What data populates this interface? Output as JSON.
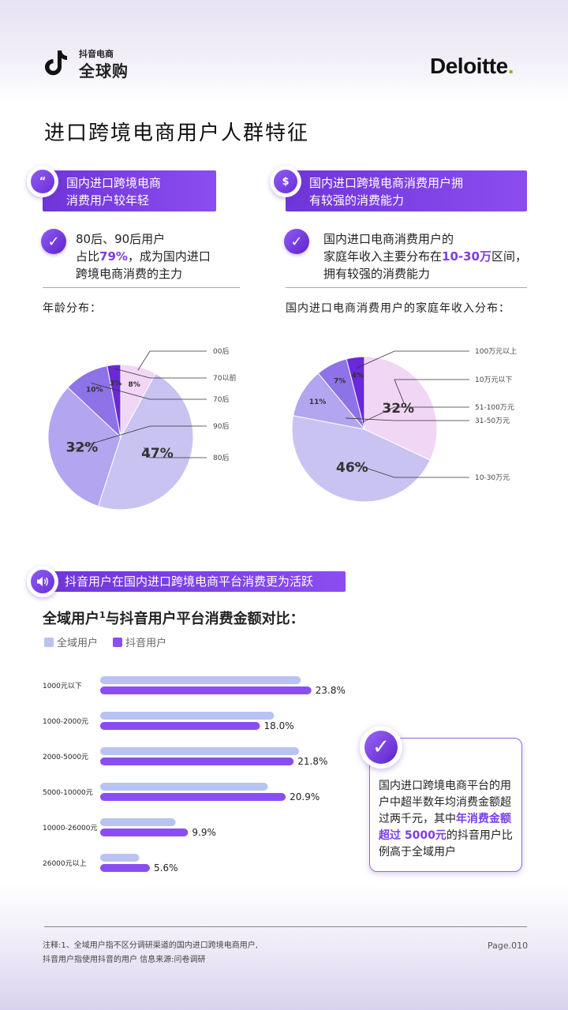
{
  "header": {
    "brand_small": "抖音电商",
    "brand_large": "全球购",
    "partner": "Deloitte",
    "partner_dot": "."
  },
  "page_title": "进口跨境电商用户人群特征",
  "left_section": {
    "banner_line1": "国内进口跨境电商",
    "banner_line2": "消费用户较年轻",
    "icon_glyph": "“",
    "highlight_line1": "80后、90后用户",
    "highlight_line2_pre": "占比",
    "highlight_line2_em": "79%",
    "highlight_line2_post": "，成为国内进口",
    "highlight_line3": "跨境电商消费的主力",
    "chart_title": "年龄分布："
  },
  "right_section": {
    "banner_line1": "国内进口跨境电商消费用户拥",
    "banner_line2": "有较强的消费能力",
    "icon_glyph": "$",
    "highlight_line1": "国内进口电商消费用户的",
    "highlight_line2_pre": "家庭年收入主要分布在",
    "highlight_line2_em": "10-30万",
    "highlight_line2_post": "区间，",
    "highlight_line3": "拥有较强的消费能力",
    "chart_title": "国内进口电商消费用户的家庭年收入分布："
  },
  "bottom_section": {
    "banner": "抖音用户在国内进口跨境电商平台消费更为活跃",
    "chart_title_pre": "全域用户",
    "chart_title_sup": "1",
    "chart_title_post": "与抖音用户平台消费金额对比：",
    "callout_pre": "国内进口跨境电商平台的用户中超半数年均消费金额超过两千元，其中",
    "callout_em": "年消费金额超过 5000元",
    "callout_post": "的抖音用户比例高于全域用户"
  },
  "chart_data": [
    {
      "type": "pie",
      "title": "年龄分布：",
      "slices": [
        {
          "label": "00后",
          "value": 8,
          "text": "8%",
          "color": "#f2d6f5"
        },
        {
          "label": "80后",
          "value": 47,
          "text": "47%",
          "color": "#c9c3f2"
        },
        {
          "label": "90后",
          "value": 32,
          "text": "32%",
          "color": "#b3a5f0"
        },
        {
          "label": "70后",
          "value": 10,
          "text": "10%",
          "color": "#8d72e8"
        },
        {
          "label": "70以前",
          "value": 3,
          "text": "3%",
          "color": "#6a28d8"
        }
      ],
      "legend_order": [
        "00后",
        "70以前",
        "70后",
        "90后",
        "80后"
      ]
    },
    {
      "type": "pie",
      "title": "国内进口电商消费用户的家庭年收入分布：",
      "slices": [
        {
          "label": "10万元以下",
          "value": 32,
          "text": "32%",
          "color": "#f2d6f5"
        },
        {
          "label": "10-30万元",
          "value": 46,
          "text": "46%",
          "color": "#c9c3f2"
        },
        {
          "label": "31-50万元",
          "value": 11,
          "text": "11%",
          "color": "#b3a5f0"
        },
        {
          "label": "51-100万元",
          "value": 7,
          "text": "7%",
          "color": "#8d72e8"
        },
        {
          "label": "100万元以上",
          "value": 4,
          "text": "4%",
          "color": "#6a28d8"
        }
      ],
      "legend_order": [
        "100万元以上",
        "10万元以下",
        "51-100万元",
        "31-50万元",
        "10-30万元"
      ]
    },
    {
      "type": "bar",
      "orientation": "horizontal",
      "title": "全域用户¹与抖音用户平台消费金额对比：",
      "categories": [
        "1000元以下",
        "1000-2000元",
        "2000-5000元",
        "5000-10000元",
        "10000-26000元",
        "26000元以上"
      ],
      "series": [
        {
          "name": "全域用户",
          "values": [
            22.6,
            19.6,
            22.4,
            18.9,
            8.5,
            4.4
          ],
          "color": "#b9c3f2"
        },
        {
          "name": "抖音用户",
          "values": [
            23.8,
            18.0,
            21.8,
            20.9,
            9.9,
            5.6
          ],
          "labels": [
            "23.8%",
            "18.0%",
            "21.8%",
            "20.9%",
            "9.9%",
            "5.6%"
          ],
          "color": "#8a4ef0"
        }
      ],
      "xlim": [
        0,
        24
      ]
    }
  ],
  "footer": {
    "note_line1": "注释:1、全域用户指不区分调研渠道的国内进口跨境电商用户,",
    "note_line2": "抖音用户指使用抖音的用户 信息来源:问卷调研",
    "page": "Page.010"
  }
}
